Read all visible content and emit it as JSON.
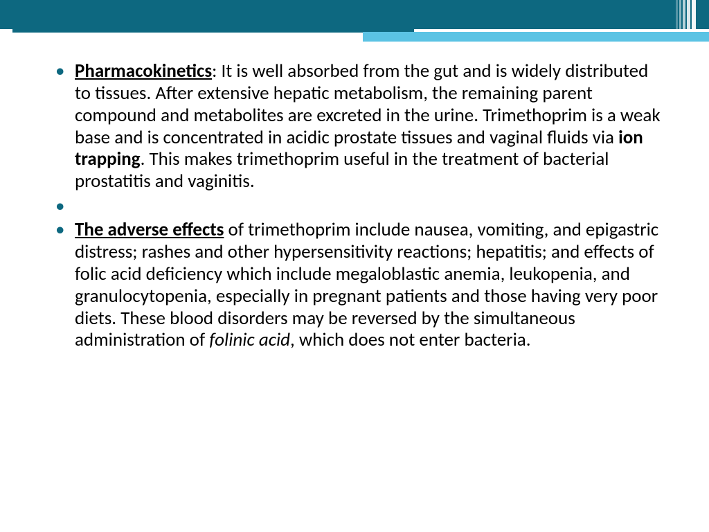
{
  "theme": {
    "header_color": "#0d6880",
    "accent_light": "#5bc3e4",
    "accent_lighter": "#a7ddef",
    "bullet_color": "#0d6880",
    "text_color": "#000000",
    "background": "#ffffff",
    "body_fontsize": 27,
    "line_height": 1.18
  },
  "bullets": [
    {
      "heading": "Pharmacokinetics",
      "heading_suffix": ":",
      "text_before_bold": " It is well absorbed from the gut and is widely distributed to tissues. After extensive hepatic metabolism, the remaining parent compound and metabolites are excreted in the urine. Trimethoprim is a weak base and is concentrated in acidic prostate tissues and vaginal fluids via ",
      "bold_inline": "ion trapping",
      "text_after_bold": ". This makes trimethoprim useful in the treatment of bacterial prostatitis and vaginitis."
    },
    {
      "heading": "",
      "text": ""
    },
    {
      "heading": "The adverse effects",
      "heading_suffix": "",
      "text_before_italic": " of trimethoprim include nausea, vomiting, and epigastric distress; rashes and other hypersensitivity reactions; hepatitis; and effects of folic acid deficiency which include megaloblastic anemia, leukopenia, and granulocytopenia, especially in pregnant patients and those having very poor diets. These blood disorders may be reversed by the simultaneous administration of ",
      "italic_inline": "folinic acid",
      "text_after_italic": ", which does not enter bacteria."
    }
  ]
}
